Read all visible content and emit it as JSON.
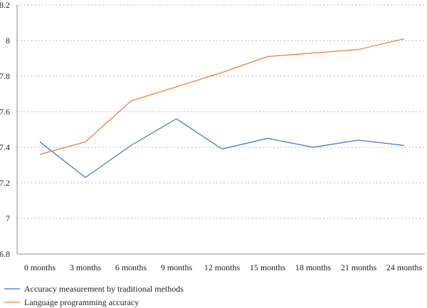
{
  "chart_data": {
    "type": "line",
    "categories": [
      "0 months",
      "3 months",
      "6 months",
      "9 months",
      "12 months",
      "15 months",
      "18 months",
      "21 months",
      "24 months"
    ],
    "series": [
      {
        "name": "Accuracy measurement by traditional methods",
        "color": "#4472c4",
        "values": [
          7.43,
          7.23,
          7.41,
          7.56,
          7.39,
          7.45,
          7.4,
          7.44,
          7.41
        ]
      },
      {
        "name": "Language programming accuracy",
        "color": "#ed7d31",
        "values": [
          7.36,
          7.43,
          7.66,
          7.74,
          7.82,
          7.91,
          7.93,
          7.95,
          8.01
        ]
      }
    ],
    "yticks": [
      "6.8",
      "7",
      "7.2",
      "7.4",
      "7.6",
      "7.8",
      "8",
      "8.2"
    ],
    "ylim": [
      6.8,
      8.2
    ],
    "grid": true,
    "legend_position": "bottom-left"
  }
}
